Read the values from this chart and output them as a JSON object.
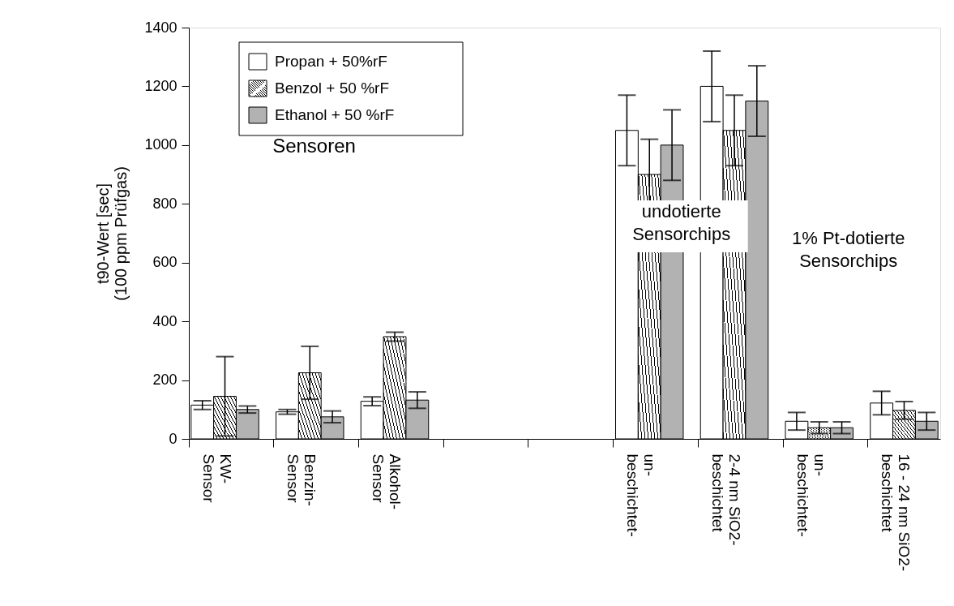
{
  "chart_data": {
    "type": "bar",
    "categories": [
      "KW-\nSensor",
      "Benzin-\nSensor",
      "Alkohol-\nSensor",
      null,
      null,
      "un-\nbeschichtet-",
      "2-4 nm SiO2-\nbeschichtet",
      "un-\nbeschichtet-",
      "16 - 24 nm SiO2-\nbeschichtet"
    ],
    "ylabel": "t90-Wert [sec]\n(100 ppm Prüfgas)",
    "ylim": [
      0,
      1400
    ],
    "yticks": [
      0,
      200,
      400,
      600,
      800,
      1000,
      1200,
      1400
    ],
    "grid": false,
    "legend": "top left",
    "series": [
      {
        "name": "Propan + 50%rF",
        "color": "#ffffff",
        "values": [
          115,
          92,
          128,
          null,
          null,
          1050,
          1200,
          60,
          122
        ],
        "errors": [
          15,
          8,
          15,
          null,
          null,
          120,
          120,
          30,
          40
        ]
      },
      {
        "name": "Benzol + 50 %rF",
        "color": "#000000",
        "values": [
          145,
          225,
          348,
          null,
          null,
          900,
          1050,
          38,
          97
        ],
        "errors": [
          135,
          90,
          15,
          null,
          null,
          120,
          120,
          20,
          30
        ]
      },
      {
        "name": "Ethanol + 50 %rF",
        "color": "#b2b2b2",
        "values": [
          100,
          75,
          132,
          null,
          null,
          1000,
          1150,
          38,
          60
        ],
        "errors": [
          12,
          20,
          28,
          null,
          null,
          120,
          120,
          20,
          30
        ]
      }
    ],
    "annotations": [
      "Sensoren",
      "undotierte\nSensorchips",
      "1% Pt-dotierte\nSensorchips"
    ]
  }
}
